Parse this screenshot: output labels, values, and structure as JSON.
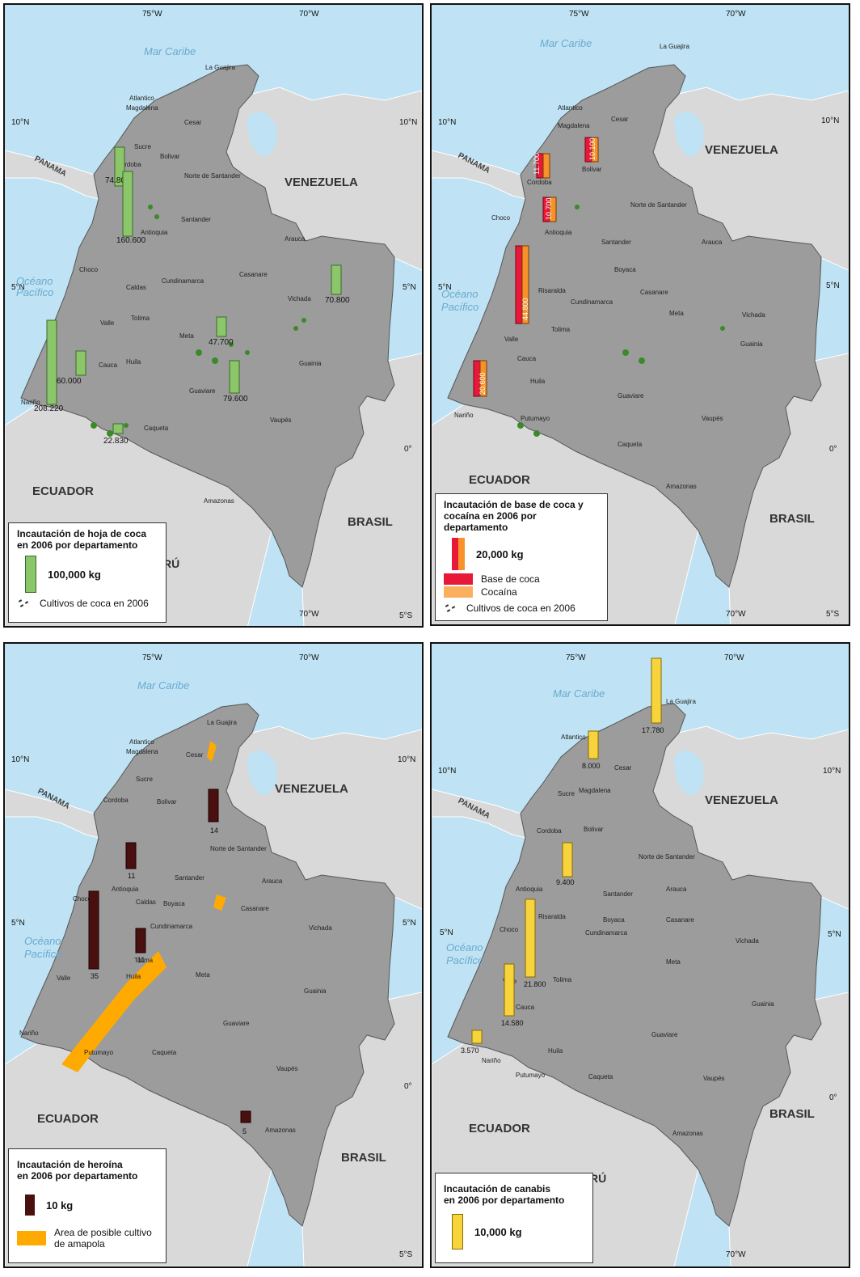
{
  "labels": {
    "mar_caribe": "Mar Caribe",
    "oceano": "Océano",
    "pacifico": "Pacífico",
    "venezuela": "VENEZUELA",
    "ecuador": "ECUADOR",
    "brasil": "BRASIL",
    "panama": "PANAMA",
    "peru": "RÚ",
    "lon_75": "75°W",
    "lon_70": "70°W",
    "lat_10": "10°N",
    "lat_5": "5°N",
    "lat_0": "0°",
    "lat_5s": "5°S"
  },
  "colors": {
    "sea": "#bfe3f4",
    "colombia": "#9c9c9c",
    "neighbors": "#d9d9d9",
    "coca_green": "#8cc66a",
    "coca_orange": "#f7922a",
    "base_red": "#e8183a",
    "heroin_dark": "#4a1010",
    "poppy_orange": "#ffaa00",
    "cannabis_yellow": "#f7d43c"
  },
  "panels": [
    {
      "legend_title_1": "Incautación de hoja de coca",
      "legend_title_2": "en 2006 por departamento",
      "scale_label": "100,000 kg",
      "extra_label": "Cultivos de coca en 2006",
      "departments": [
        "La Guajira",
        "Atlantico",
        "Magdalena",
        "Cesar",
        "Bolivar",
        "Sucre",
        "Cordoba",
        "Norte de Santander",
        "Antioquia",
        "Santander",
        "Arauca",
        "Choco",
        "Casanare",
        "Caldas",
        "Cundinamarca",
        "Tolima",
        "Vichada",
        "Valle",
        "Meta",
        "Cauca",
        "Huila",
        "Guainia",
        "Guaviare",
        "Nariño",
        "Caqueta",
        "Vaupés",
        "Amazonas"
      ],
      "values": [
        "74.800",
        "160.600",
        "70.800",
        "47.700",
        "60.000",
        "79.600",
        "208.220",
        "22.830"
      ]
    },
    {
      "legend_title_1": "Incautación de base de coca y",
      "legend_title_2": "cocaína en 2006 por departamento",
      "scale_label": "20,000 kg",
      "key_1": "Base de coca",
      "key_2": "Cocaína",
      "extra_label": "Cultivos de coca en 2006",
      "departments": [
        "La Guajira",
        "Atlantico",
        "Magdalena",
        "Cesar",
        "Bolivar",
        "Cordoba",
        "Norte de Santander",
        "Antioquia",
        "Choco",
        "Santander",
        "Arauca",
        "Boyaca",
        "Risaralda",
        "Casanare",
        "Cundinamarca",
        "Meta",
        "Vichada",
        "Tolima",
        "Valle",
        "Guainia",
        "Cauca",
        "Huila",
        "Guaviare",
        "Nariño",
        "Vaupés",
        "Putumayo",
        "Caqueta",
        "Amazonas"
      ],
      "values": [
        "11.700",
        "10.100",
        "10.700",
        "44.800",
        "20.600"
      ]
    },
    {
      "legend_title_1": "Incautación de heroína",
      "legend_title_2": "en 2006 por departamento",
      "scale_label": "10 kg",
      "extra_label_1": "Area de posible cultivo",
      "extra_label_2": "de amapola",
      "departments": [
        "La Guajira",
        "Atlantico",
        "Magdalena",
        "Cesar",
        "Sucre",
        "Cordoba",
        "Bolivar",
        "Norte de Santander",
        "Antioquia",
        "Santander",
        "Arauca",
        "Choco",
        "Caldas",
        "Boyaca",
        "Casanare",
        "Cundinamarca",
        "Vichada",
        "Tolima",
        "Valle",
        "Huila",
        "Meta",
        "Guainia",
        "Nariño",
        "Guaviare",
        "Putumayo",
        "Caqueta",
        "Vaupés",
        "Amazonas"
      ],
      "values": [
        "14",
        "11",
        "35",
        "11",
        "5"
      ]
    },
    {
      "legend_title_1": "Incautación de canabis",
      "legend_title_2": "en 2006 por departamento",
      "scale_label": "10,000 kg",
      "departments": [
        "La Guajira",
        "Atlantico",
        "Magdalena",
        "Cesar",
        "Sucre",
        "Cordoba",
        "Bolivar",
        "Norte de Santander",
        "Antioquia",
        "Santander",
        "Arauca",
        "Boyaca",
        "Choco",
        "Risaralda",
        "Cundinamarca",
        "Casanare",
        "Vichada",
        "Valle",
        "Tolima",
        "Meta",
        "Guainia",
        "Cauca",
        "Huila",
        "Nariño",
        "Guaviare",
        "Putumayo",
        "Caqueta",
        "Vaupés",
        "Amazonas"
      ],
      "values": [
        "17.780",
        "8.000",
        "9.400",
        "21.800",
        "14.580",
        "3.570"
      ]
    }
  ]
}
